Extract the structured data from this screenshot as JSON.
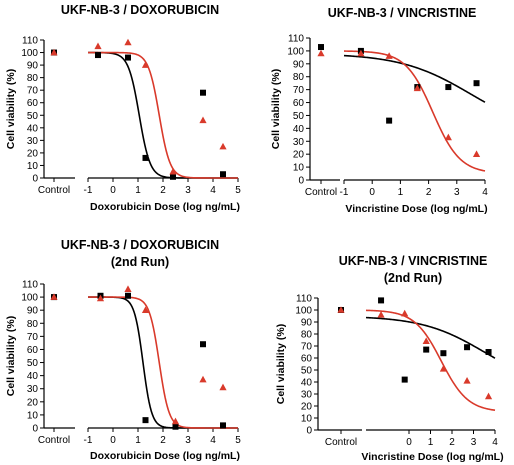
{
  "chart_data": [
    {
      "type": "scatter",
      "title": "UKF-NB-3 / DOXORUBICIN",
      "xlabel": "Doxorubicin Dose (log ng/mL)",
      "ylabel": "Cell viability (%)",
      "xlim": [
        -1,
        5
      ],
      "ylim": [
        0,
        110
      ],
      "control_label": "Control",
      "xticks": [
        "-1",
        "0",
        "1",
        "2",
        "3",
        "4",
        "5"
      ],
      "yticks": [
        "0",
        "10",
        "20",
        "30",
        "40",
        "50",
        "60",
        "70",
        "80",
        "90",
        "100",
        "110"
      ],
      "control": [
        {
          "y": 100,
          "color": "#000000"
        },
        {
          "y": 100,
          "color": "#d93a2b"
        }
      ],
      "series": [
        {
          "color": "#000000",
          "marker": "square",
          "x": [
            -0.6,
            0.6,
            1.3,
            2.4,
            3.6,
            4.4
          ],
          "y": [
            98,
            96,
            16,
            1,
            68,
            3
          ],
          "fit": {
            "top": 100,
            "bottom": 0,
            "logIC50": 1.05,
            "hill": -2.0
          }
        },
        {
          "color": "#d93a2b",
          "marker": "triangle",
          "x": [
            -0.6,
            0.6,
            1.3,
            2.4,
            3.6,
            4.4
          ],
          "y": [
            105,
            108,
            90,
            5,
            46,
            25
          ],
          "fit": {
            "top": 100,
            "bottom": 0,
            "logIC50": 1.85,
            "hill": -2.0
          }
        }
      ]
    },
    {
      "type": "scatter",
      "title": "UKF-NB-3 / VINCRISTINE",
      "xlabel": "Vincristine Dose (log ng/mL)",
      "ylabel": "Cell viability (%)",
      "xlim": [
        -1,
        4
      ],
      "ylim": [
        0,
        110
      ],
      "control_label": "Control",
      "xticks": [
        "-1",
        "0",
        "1",
        "2",
        "3",
        "4"
      ],
      "yticks": [
        "0",
        "10",
        "20",
        "30",
        "40",
        "50",
        "60",
        "70",
        "80",
        "90",
        "100",
        "110"
      ],
      "control": [
        {
          "y": 103,
          "color": "#000000"
        },
        {
          "y": 98,
          "color": "#d93a2b"
        }
      ],
      "series": [
        {
          "color": "#000000",
          "marker": "square",
          "x": [
            -0.4,
            0.6,
            1.6,
            2.7,
            3.7
          ],
          "y": [
            100,
            46,
            72,
            72,
            75
          ],
          "fit": {
            "top": 98,
            "bottom": 35,
            "logIC50": 3.5,
            "hill": -0.35
          }
        },
        {
          "color": "#d93a2b",
          "marker": "triangle",
          "x": [
            -0.4,
            0.6,
            1.6,
            2.7,
            3.7
          ],
          "y": [
            98,
            96,
            71,
            33,
            20
          ],
          "fit": {
            "top": 100,
            "bottom": 5,
            "logIC50": 2.15,
            "hill": -0.9
          }
        }
      ]
    },
    {
      "type": "scatter",
      "title": "UKF-NB-3 / DOXORUBICIN",
      "subtitle": "(2nd Run)",
      "xlabel": "Doxorubicin Dose (log ng/mL)",
      "ylabel": "Cell viability (%)",
      "xlim": [
        -1,
        5
      ],
      "ylim": [
        0,
        110
      ],
      "control_label": "Control",
      "xticks": [
        "-1",
        "0",
        "1",
        "2",
        "3",
        "4",
        "5"
      ],
      "yticks": [
        "0",
        "10",
        "20",
        "30",
        "40",
        "50",
        "60",
        "70",
        "80",
        "90",
        "100",
        "110"
      ],
      "control": [
        {
          "y": 100,
          "color": "#000000"
        },
        {
          "y": 100,
          "color": "#d93a2b"
        }
      ],
      "series": [
        {
          "color": "#000000",
          "marker": "square",
          "x": [
            -0.5,
            0.6,
            1.3,
            2.5,
            3.6,
            4.4
          ],
          "y": [
            101,
            101,
            6,
            1,
            64,
            2
          ],
          "fit": {
            "top": 100,
            "bottom": 0,
            "logIC50": 1.2,
            "hill": -2.5
          }
        },
        {
          "color": "#d93a2b",
          "marker": "triangle",
          "x": [
            -0.5,
            0.6,
            1.3,
            2.5,
            3.6,
            4.4
          ],
          "y": [
            99,
            106,
            90,
            5,
            37,
            31
          ],
          "fit": {
            "top": 100,
            "bottom": 0,
            "logIC50": 1.85,
            "hill": -2.2
          }
        }
      ]
    },
    {
      "type": "scatter",
      "title": "UKF-NB-3 / VINCRISTINE",
      "subtitle": "(2nd Run)",
      "xlabel": "Vincristine Dose (log ng/mL)",
      "ylabel": "Cell viability (%)",
      "xlim": [
        -2,
        4
      ],
      "ylim": [
        0,
        110
      ],
      "control_label": "Control",
      "xticks": [
        "0",
        "1",
        "2",
        "3",
        "4"
      ],
      "yticks": [
        "0",
        "10",
        "20",
        "30",
        "40",
        "50",
        "60",
        "70",
        "80",
        "90",
        "100",
        "110"
      ],
      "control": [
        {
          "y": 100,
          "color": "#000000"
        },
        {
          "y": 100,
          "color": "#d93a2b"
        }
      ],
      "series": [
        {
          "color": "#000000",
          "marker": "square",
          "x": [
            -1.3,
            -0.2,
            0.8,
            1.6,
            2.7,
            3.7
          ],
          "y": [
            108,
            42,
            67,
            64,
            69,
            65
          ],
          "fit": {
            "top": 95,
            "bottom": 35,
            "logIC50": 3.5,
            "hill": -0.3
          }
        },
        {
          "color": "#d93a2b",
          "marker": "triangle",
          "x": [
            -1.3,
            -0.2,
            0.8,
            1.6,
            2.7,
            3.7
          ],
          "y": [
            96,
            97,
            74,
            51,
            41,
            28
          ],
          "fit": {
            "top": 100,
            "bottom": 15,
            "logIC50": 1.5,
            "hill": -0.7
          }
        }
      ]
    }
  ]
}
